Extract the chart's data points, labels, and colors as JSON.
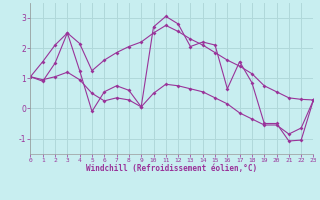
{
  "xlabel": "Windchill (Refroidissement éolien,°C)",
  "x": [
    0,
    1,
    2,
    3,
    4,
    5,
    6,
    7,
    8,
    9,
    10,
    11,
    12,
    13,
    14,
    15,
    16,
    17,
    18,
    19,
    20,
    21,
    22,
    23
  ],
  "y_main": [
    1.05,
    0.9,
    1.5,
    2.5,
    1.25,
    -0.1,
    0.55,
    0.75,
    0.6,
    0.05,
    2.7,
    3.05,
    2.8,
    2.05,
    2.2,
    2.1,
    0.65,
    1.55,
    0.85,
    -0.5,
    -0.5,
    -1.08,
    -1.05,
    0.28
  ],
  "y_upper": [
    1.05,
    1.55,
    2.1,
    2.5,
    2.15,
    1.25,
    1.6,
    1.85,
    2.05,
    2.2,
    2.5,
    2.75,
    2.55,
    2.3,
    2.1,
    1.85,
    1.6,
    1.4,
    1.15,
    0.75,
    0.55,
    0.35,
    0.3,
    0.28
  ],
  "y_lower": [
    1.05,
    0.95,
    1.05,
    1.2,
    0.95,
    0.5,
    0.25,
    0.35,
    0.28,
    0.05,
    0.5,
    0.8,
    0.75,
    0.65,
    0.55,
    0.35,
    0.15,
    -0.15,
    -0.35,
    -0.55,
    -0.55,
    -0.85,
    -0.65,
    0.28
  ],
  "line_color": "#993399",
  "bg_color": "#c8eef0",
  "grid_color": "#b0d8da",
  "ylim": [
    -1.5,
    3.5
  ],
  "xlim": [
    0,
    23
  ],
  "yticks": [
    -1,
    0,
    1,
    2,
    3
  ],
  "xticks": [
    0,
    1,
    2,
    3,
    4,
    5,
    6,
    7,
    8,
    9,
    10,
    11,
    12,
    13,
    14,
    15,
    16,
    17,
    18,
    19,
    20,
    21,
    22,
    23
  ]
}
